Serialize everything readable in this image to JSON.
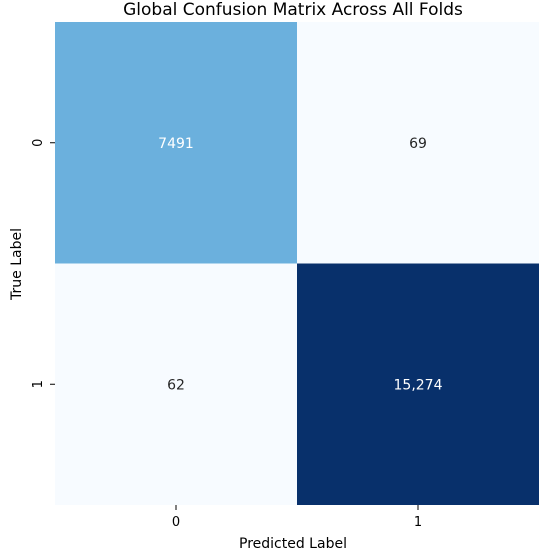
{
  "chart_data": {
    "type": "heatmap",
    "title": "Global Confusion Matrix Across All Folds",
    "xlabel": "Predicted Label",
    "ylabel": "True Label",
    "x_categories": [
      "0",
      "1"
    ],
    "y_categories": [
      "0",
      "1"
    ],
    "values": [
      [
        7491,
        69
      ],
      [
        62,
        15274
      ]
    ],
    "cell_labels": [
      [
        "7491",
        "69"
      ],
      [
        "62",
        "15,274"
      ]
    ],
    "colormap": "Blues",
    "colorbar": false,
    "cell_colors": [
      [
        "#6bb0dd",
        "#f7fbff"
      ],
      [
        "#f7fbff",
        "#08306b"
      ]
    ],
    "label_colors": [
      [
        "#ffffff",
        "#262626"
      ],
      [
        "#262626",
        "#ffffff"
      ]
    ]
  }
}
